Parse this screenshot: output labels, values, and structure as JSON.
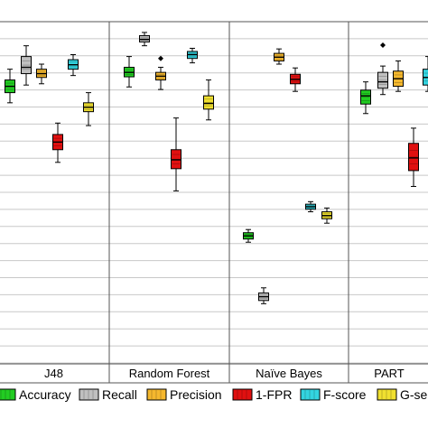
{
  "chart_data": {
    "type": "boxplot",
    "groups": [
      "J48",
      "Random Forest",
      "Naïve Bayes",
      "PART"
    ],
    "series": [
      {
        "name": "Accuracy",
        "color": "#22cc22"
      },
      {
        "name": "Recall",
        "color": "#c0c0c0"
      },
      {
        "name": "Precision",
        "color": "#f5b82e"
      },
      {
        "name": "1-FPR",
        "color": "#e01010"
      },
      {
        "name": "F-score",
        "color": "#33d4e0"
      },
      {
        "name": "G-se",
        "color": "#f0e030"
      }
    ],
    "boxes": [
      {
        "group": 0,
        "series": 0,
        "min": 0.872,
        "q1": 0.888,
        "median": 0.898,
        "q3": 0.908,
        "max": 0.925
      },
      {
        "group": 0,
        "series": 1,
        "min": 0.9,
        "q1": 0.918,
        "median": 0.928,
        "q3": 0.945,
        "max": 0.962
      },
      {
        "group": 0,
        "series": 2,
        "min": 0.902,
        "q1": 0.912,
        "median": 0.918,
        "q3": 0.925,
        "max": 0.933
      },
      {
        "group": 0,
        "series": 3,
        "min": 0.778,
        "q1": 0.798,
        "median": 0.81,
        "q3": 0.822,
        "max": 0.84
      },
      {
        "group": 0,
        "series": 4,
        "min": 0.915,
        "q1": 0.925,
        "median": 0.932,
        "q3": 0.94,
        "max": 0.948
      },
      {
        "group": 0,
        "series": 5,
        "min": 0.836,
        "q1": 0.858,
        "median": 0.865,
        "q3": 0.872,
        "max": 0.888
      },
      {
        "group": 1,
        "series": 0,
        "min": 0.897,
        "q1": 0.913,
        "median": 0.92,
        "q3": 0.928,
        "max": 0.945
      },
      {
        "group": 1,
        "series": 1,
        "min": 0.962,
        "q1": 0.968,
        "median": 0.972,
        "q3": 0.978,
        "max": 0.983
      },
      {
        "group": 1,
        "series": 2,
        "min": 0.893,
        "q1": 0.908,
        "median": 0.914,
        "q3": 0.92,
        "max": 0.928,
        "outliers": [
          0.942
        ]
      },
      {
        "group": 1,
        "series": 3,
        "min": 0.733,
        "q1": 0.768,
        "median": 0.782,
        "q3": 0.798,
        "max": 0.848
      },
      {
        "group": 1,
        "series": 4,
        "min": 0.935,
        "q1": 0.942,
        "median": 0.948,
        "q3": 0.953,
        "max": 0.958
      },
      {
        "group": 1,
        "series": 5,
        "min": 0.845,
        "q1": 0.862,
        "median": 0.871,
        "q3": 0.883,
        "max": 0.908
      },
      {
        "group": 2,
        "series": 0,
        "min": 0.652,
        "q1": 0.657,
        "median": 0.662,
        "q3": 0.667,
        "max": 0.672
      },
      {
        "group": 2,
        "series": 1,
        "min": 0.555,
        "q1": 0.56,
        "median": 0.566,
        "q3": 0.572,
        "max": 0.58
      },
      {
        "group": 2,
        "series": 2,
        "min": 0.933,
        "q1": 0.938,
        "median": 0.944,
        "q3": 0.95,
        "max": 0.957
      },
      {
        "group": 2,
        "series": 3,
        "min": 0.89,
        "q1": 0.902,
        "median": 0.909,
        "q3": 0.917,
        "max": 0.927
      },
      {
        "group": 2,
        "series": 4,
        "min": 0.7,
        "q1": 0.704,
        "median": 0.708,
        "q3": 0.712,
        "max": 0.716
      },
      {
        "group": 2,
        "series": 5,
        "min": 0.682,
        "q1": 0.689,
        "median": 0.694,
        "q3": 0.7,
        "max": 0.706
      },
      {
        "group": 3,
        "series": 0,
        "min": 0.855,
        "q1": 0.87,
        "median": 0.883,
        "q3": 0.892,
        "max": 0.905
      },
      {
        "group": 3,
        "series": 1,
        "min": 0.885,
        "q1": 0.895,
        "median": 0.905,
        "q3": 0.92,
        "max": 0.93,
        "outliers": [
          0.963
        ]
      },
      {
        "group": 3,
        "series": 2,
        "min": 0.89,
        "q1": 0.898,
        "median": 0.91,
        "q3": 0.922,
        "max": 0.938
      },
      {
        "group": 3,
        "series": 3,
        "min": 0.74,
        "q1": 0.765,
        "median": 0.785,
        "q3": 0.808,
        "max": 0.832
      },
      {
        "group": 3,
        "series": 4,
        "min": 0.89,
        "q1": 0.9,
        "median": 0.912,
        "q3": 0.925,
        "max": 0.945
      }
    ],
    "ylim": [
      0.46,
      1.0
    ],
    "grid": true,
    "legend_position": "bottom"
  }
}
